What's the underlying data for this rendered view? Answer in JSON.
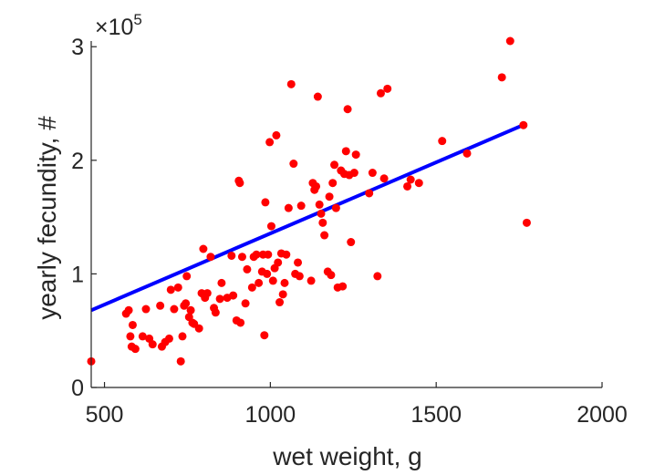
{
  "chart_data": {
    "type": "scatter",
    "xlabel": "wet weight, g",
    "ylabel": "yearly fecundity, #",
    "xlim": [
      460,
      2000
    ],
    "ylim": [
      0,
      3.05
    ],
    "xticks": [
      500,
      1000,
      1500,
      2000
    ],
    "yticks": [
      0,
      1,
      2,
      3
    ],
    "y_multiplier": {
      "base": "×10",
      "exponent": "5"
    },
    "box": "left-bottom axes only",
    "grid": false,
    "colors": {
      "points": "#ff0000",
      "fit_line": "#0000ff",
      "axis": "#262626"
    },
    "series": [
      {
        "type": "scatter",
        "points": [
          [
            460,
            0.23
          ],
          [
            565,
            0.65
          ],
          [
            573,
            0.68
          ],
          [
            578,
            0.45
          ],
          [
            582,
            0.36
          ],
          [
            585,
            0.55
          ],
          [
            593,
            0.34
          ],
          [
            615,
            0.45
          ],
          [
            625,
            0.69
          ],
          [
            635,
            0.43
          ],
          [
            645,
            0.38
          ],
          [
            668,
            0.72
          ],
          [
            673,
            0.36
          ],
          [
            683,
            0.4
          ],
          [
            695,
            0.43
          ],
          [
            700,
            0.86
          ],
          [
            710,
            0.69
          ],
          [
            722,
            0.88
          ],
          [
            730,
            0.23
          ],
          [
            735,
            0.45
          ],
          [
            740,
            0.72
          ],
          [
            745,
            0.74
          ],
          [
            748,
            0.98
          ],
          [
            755,
            0.62
          ],
          [
            760,
            0.68
          ],
          [
            765,
            0.57
          ],
          [
            770,
            0.56
          ],
          [
            785,
            0.52
          ],
          [
            793,
            0.83
          ],
          [
            798,
            1.22
          ],
          [
            803,
            0.79
          ],
          [
            810,
            0.83
          ],
          [
            820,
            1.15
          ],
          [
            830,
            0.7
          ],
          [
            835,
            0.66
          ],
          [
            848,
            0.78
          ],
          [
            853,
            0.92
          ],
          [
            870,
            0.79
          ],
          [
            883,
            1.16
          ],
          [
            888,
            0.81
          ],
          [
            898,
            0.59
          ],
          [
            905,
            1.82
          ],
          [
            908,
            1.8
          ],
          [
            910,
            0.57
          ],
          [
            915,
            1.15
          ],
          [
            925,
            0.74
          ],
          [
            930,
            1.04
          ],
          [
            945,
            0.88
          ],
          [
            950,
            1.15
          ],
          [
            958,
            1.17
          ],
          [
            965,
            0.92
          ],
          [
            975,
            1.02
          ],
          [
            978,
            1.17
          ],
          [
            982,
            0.46
          ],
          [
            985,
            1.63
          ],
          [
            990,
            1.0
          ],
          [
            993,
            1.17
          ],
          [
            998,
            2.16
          ],
          [
            1003,
            1.42
          ],
          [
            1008,
            0.94
          ],
          [
            1013,
            1.05
          ],
          [
            1018,
            2.22
          ],
          [
            1023,
            1.1
          ],
          [
            1028,
            0.75
          ],
          [
            1033,
            1.18
          ],
          [
            1038,
            0.82
          ],
          [
            1043,
            0.92
          ],
          [
            1048,
            1.17
          ],
          [
            1055,
            1.58
          ],
          [
            1063,
            2.67
          ],
          [
            1070,
            1.97
          ],
          [
            1075,
            1.0
          ],
          [
            1083,
            1.1
          ],
          [
            1088,
            0.98
          ],
          [
            1093,
            1.6
          ],
          [
            1123,
            0.94
          ],
          [
            1128,
            1.8
          ],
          [
            1133,
            1.74
          ],
          [
            1138,
            1.77
          ],
          [
            1143,
            2.56
          ],
          [
            1148,
            1.61
          ],
          [
            1153,
            1.53
          ],
          [
            1158,
            1.45
          ],
          [
            1163,
            1.34
          ],
          [
            1173,
            1.02
          ],
          [
            1178,
            1.68
          ],
          [
            1183,
            0.99
          ],
          [
            1188,
            1.8
          ],
          [
            1193,
            1.96
          ],
          [
            1198,
            1.58
          ],
          [
            1203,
            0.88
          ],
          [
            1213,
            1.91
          ],
          [
            1218,
            0.89
          ],
          [
            1223,
            1.88
          ],
          [
            1228,
            2.08
          ],
          [
            1233,
            2.45
          ],
          [
            1238,
            1.87
          ],
          [
            1243,
            1.28
          ],
          [
            1253,
            1.89
          ],
          [
            1258,
            2.05
          ],
          [
            1298,
            1.71
          ],
          [
            1308,
            1.89
          ],
          [
            1323,
            0.98
          ],
          [
            1333,
            2.59
          ],
          [
            1343,
            1.84
          ],
          [
            1353,
            2.63
          ],
          [
            1413,
            1.77
          ],
          [
            1423,
            1.83
          ],
          [
            1448,
            1.8
          ],
          [
            1518,
            2.17
          ],
          [
            1593,
            2.06
          ],
          [
            1698,
            2.73
          ],
          [
            1723,
            3.05
          ],
          [
            1763,
            2.31
          ],
          [
            1773,
            1.45
          ]
        ]
      },
      {
        "type": "line",
        "points": [
          [
            460,
            0.68
          ],
          [
            1770,
            2.32
          ]
        ]
      }
    ]
  }
}
